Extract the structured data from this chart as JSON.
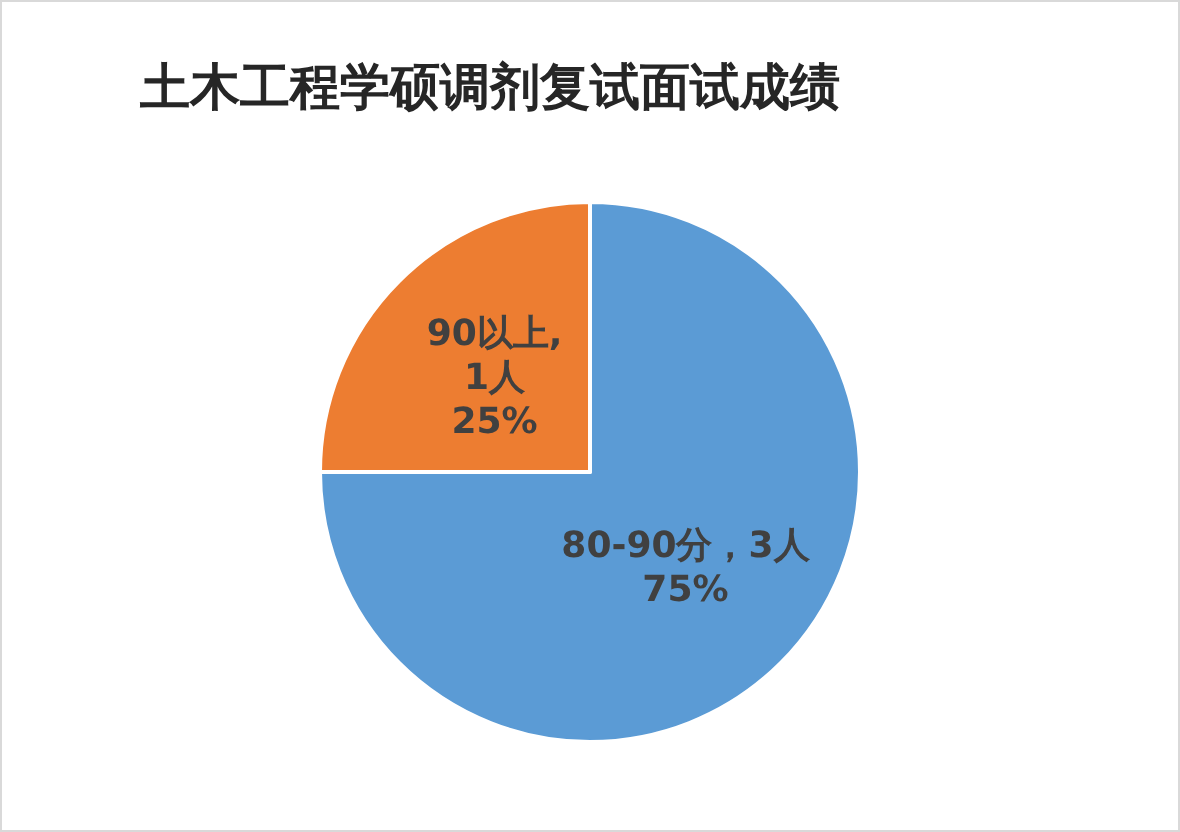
{
  "chart_data": {
    "type": "pie",
    "title": "土木工程学硕调剂复试面试成绩",
    "categories": [
      "80-90分",
      "90以上"
    ],
    "values": [
      3,
      1
    ],
    "colors": [
      "#5b9bd5",
      "#ed7d31"
    ],
    "value_labels": [
      "，3人\n75%",
      ",\n1人\n25%"
    ]
  }
}
